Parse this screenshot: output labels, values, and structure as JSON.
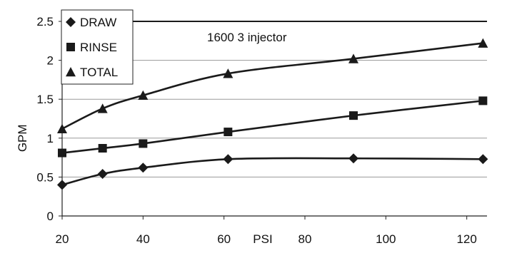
{
  "chart_data": {
    "type": "line",
    "title": "",
    "xlabel": "PSI",
    "ylabel": "GPM",
    "xlim": [
      20,
      125
    ],
    "ylim": [
      0,
      2.5
    ],
    "x_ticks": [
      20,
      40,
      60,
      80,
      100,
      120
    ],
    "y_ticks": [
      0,
      0.5,
      1,
      1.5,
      2,
      2.5
    ],
    "y_tick_labels": [
      "0",
      "0.5",
      "1",
      "1.5",
      "2",
      "2.5"
    ],
    "grid": "horizontal",
    "legend_position": "top-left",
    "series": [
      {
        "name": "DRAW",
        "marker": "diamond",
        "x": [
          20,
          30,
          40,
          61,
          92,
          124
        ],
        "y": [
          0.4,
          0.54,
          0.62,
          0.73,
          0.74,
          0.73
        ]
      },
      {
        "name": "RINSE",
        "marker": "square",
        "x": [
          20,
          30,
          40,
          61,
          92,
          124
        ],
        "y": [
          0.81,
          0.87,
          0.93,
          1.08,
          1.29,
          1.48
        ]
      },
      {
        "name": "TOTAL",
        "marker": "triangle",
        "x": [
          20,
          30,
          40,
          61,
          92,
          124
        ],
        "y": [
          1.12,
          1.38,
          1.55,
          1.83,
          2.02,
          2.22
        ]
      }
    ],
    "reference_line": {
      "label": "1600 3 injector",
      "y": 2.5
    },
    "colors": {
      "line": "#1a1a1a",
      "grid": "#9a9a9a",
      "axis": "#222222"
    }
  }
}
